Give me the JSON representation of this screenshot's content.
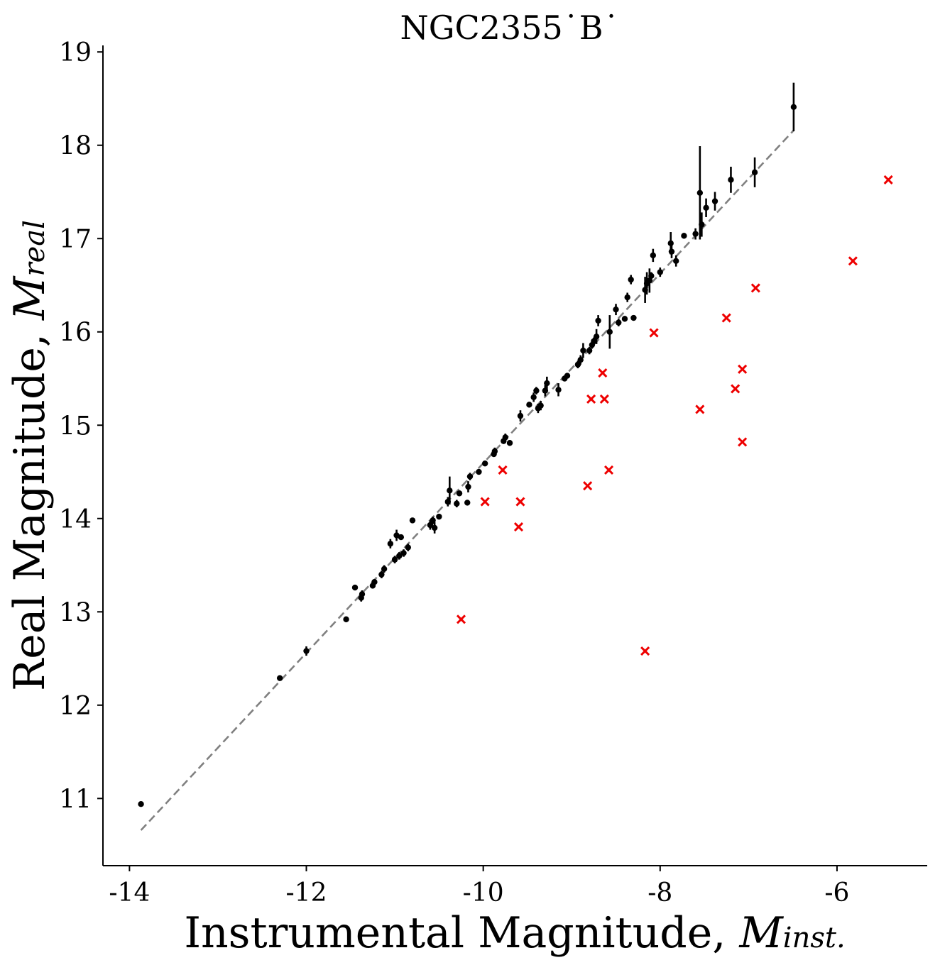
{
  "chart_data": {
    "type": "scatter",
    "title": "NGC2355˙B˙",
    "xlabel": "Instrumental Magnitude, ",
    "xlabel_symbol": "M",
    "xlabel_subscript": "inst.",
    "ylabel": "Real Magnitude, ",
    "ylabel_symbol": "M",
    "ylabel_subscript": "real",
    "xlim": [
      -14.3,
      -4.98
    ],
    "ylim": [
      10.28,
      19.07
    ],
    "xticks": [
      -14,
      -12,
      -10,
      -8,
      -6
    ],
    "xtick_labels": [
      "-14",
      "-12",
      "-10",
      "-8",
      "-6"
    ],
    "yticks": [
      11,
      12,
      13,
      14,
      15,
      16,
      17,
      18,
      19
    ],
    "ytick_labels": [
      "11",
      "12",
      "13",
      "14",
      "15",
      "16",
      "17",
      "18",
      "19"
    ],
    "grid": false,
    "fit_line": {
      "x": [
        -13.87,
        -6.49
      ],
      "y": [
        10.66,
        18.16
      ],
      "color": "#808080",
      "style": "dashed"
    },
    "series": [
      {
        "marker": "dot",
        "color": "#000000",
        "points": [
          [
            -13.87,
            10.94,
            0.02
          ],
          [
            -12.3,
            12.29,
            0.03
          ],
          [
            -12.0,
            12.58,
            0.05
          ],
          [
            -11.55,
            12.92,
            0.03
          ],
          [
            -11.45,
            13.26,
            0.03
          ],
          [
            -11.38,
            13.15,
            0.04
          ],
          [
            -11.37,
            13.19,
            0.04
          ],
          [
            -11.25,
            13.28,
            0.03
          ],
          [
            -11.23,
            13.32,
            0.03
          ],
          [
            -11.15,
            13.4,
            0.04
          ],
          [
            -11.12,
            13.46,
            0.04
          ],
          [
            -11.05,
            13.73,
            0.05
          ],
          [
            -11.0,
            13.56,
            0.04
          ],
          [
            -10.98,
            13.82,
            0.06
          ],
          [
            -10.95,
            13.6,
            0.04
          ],
          [
            -10.93,
            13.8,
            0.03
          ],
          [
            -10.9,
            13.63,
            0.04
          ],
          [
            -10.85,
            13.69,
            0.04
          ],
          [
            -10.8,
            13.98,
            0.03
          ],
          [
            -10.6,
            13.93,
            0.05
          ],
          [
            -10.57,
            13.98,
            0.04
          ],
          [
            -10.55,
            13.9,
            0.06
          ],
          [
            -10.5,
            14.02,
            0.03
          ],
          [
            -10.4,
            14.18,
            0.05
          ],
          [
            -10.38,
            14.3,
            0.15
          ],
          [
            -10.3,
            14.16,
            0.04
          ],
          [
            -10.27,
            14.27,
            0.03
          ],
          [
            -10.18,
            14.17,
            0.03
          ],
          [
            -10.17,
            14.34,
            0.06
          ],
          [
            -10.15,
            14.45,
            0.04
          ],
          [
            -10.05,
            14.5,
            0.03
          ],
          [
            -9.98,
            14.59,
            0.03
          ],
          [
            -9.88,
            14.69,
            0.03
          ],
          [
            -9.87,
            14.72,
            0.04
          ],
          [
            -9.77,
            14.83,
            0.03
          ],
          [
            -9.75,
            14.87,
            0.04
          ],
          [
            -9.7,
            14.81,
            0.03
          ],
          [
            -9.58,
            15.1,
            0.06
          ],
          [
            -9.48,
            15.22,
            0.03
          ],
          [
            -9.43,
            15.3,
            0.05
          ],
          [
            -9.4,
            15.37,
            0.04
          ],
          [
            -9.38,
            15.18,
            0.05
          ],
          [
            -9.35,
            15.21,
            0.05
          ],
          [
            -9.3,
            15.37,
            0.06
          ],
          [
            -9.28,
            15.45,
            0.07
          ],
          [
            -9.15,
            15.38,
            0.07
          ],
          [
            -9.08,
            15.5,
            0.03
          ],
          [
            -9.05,
            15.53,
            0.03
          ],
          [
            -8.93,
            15.65,
            0.04
          ],
          [
            -8.9,
            15.7,
            0.05
          ],
          [
            -8.87,
            15.8,
            0.08
          ],
          [
            -8.8,
            15.8,
            0.04
          ],
          [
            -8.77,
            15.86,
            0.04
          ],
          [
            -8.75,
            15.9,
            0.04
          ],
          [
            -8.72,
            15.95,
            0.08
          ],
          [
            -8.7,
            16.12,
            0.06
          ],
          [
            -8.57,
            16.0,
            0.18
          ],
          [
            -8.5,
            16.24,
            0.06
          ],
          [
            -8.47,
            16.1,
            0.04
          ],
          [
            -8.4,
            16.14,
            0.03
          ],
          [
            -8.37,
            16.37,
            0.05
          ],
          [
            -8.33,
            16.56,
            0.05
          ],
          [
            -8.3,
            16.15,
            0.03
          ],
          [
            -8.17,
            16.45,
            0.14
          ],
          [
            -8.15,
            16.52,
            0.12
          ],
          [
            -8.12,
            16.55,
            0.13
          ],
          [
            -8.1,
            16.6,
            0.04
          ],
          [
            -8.08,
            16.82,
            0.07
          ],
          [
            -8.0,
            16.64,
            0.05
          ],
          [
            -7.88,
            16.95,
            0.12
          ],
          [
            -7.87,
            16.86,
            0.07
          ],
          [
            -7.82,
            16.76,
            0.06
          ],
          [
            -7.73,
            17.03,
            0.03
          ],
          [
            -7.6,
            17.05,
            0.06
          ],
          [
            -7.55,
            17.49,
            0.5
          ],
          [
            -7.53,
            17.15,
            0.13
          ],
          [
            -7.48,
            17.33,
            0.1
          ],
          [
            -7.38,
            17.4,
            0.1
          ],
          [
            -7.2,
            17.63,
            0.14
          ],
          [
            -6.93,
            17.71,
            0.16
          ],
          [
            -6.49,
            18.41,
            0.26
          ]
        ]
      },
      {
        "marker": "x",
        "color": "#ee0000",
        "points": [
          [
            -10.25,
            12.92
          ],
          [
            -9.98,
            14.18
          ],
          [
            -9.78,
            14.52
          ],
          [
            -9.6,
            13.91
          ],
          [
            -9.58,
            14.18
          ],
          [
            -8.82,
            14.35
          ],
          [
            -8.78,
            15.28
          ],
          [
            -8.65,
            15.56
          ],
          [
            -8.63,
            15.28
          ],
          [
            -8.58,
            14.52
          ],
          [
            -8.17,
            12.58
          ],
          [
            -8.07,
            15.99
          ],
          [
            -7.55,
            15.17
          ],
          [
            -7.25,
            16.15
          ],
          [
            -7.15,
            15.39
          ],
          [
            -7.07,
            15.6
          ],
          [
            -7.07,
            14.82
          ],
          [
            -6.92,
            16.47
          ],
          [
            -5.82,
            16.76
          ],
          [
            -5.42,
            17.63
          ]
        ]
      }
    ]
  }
}
